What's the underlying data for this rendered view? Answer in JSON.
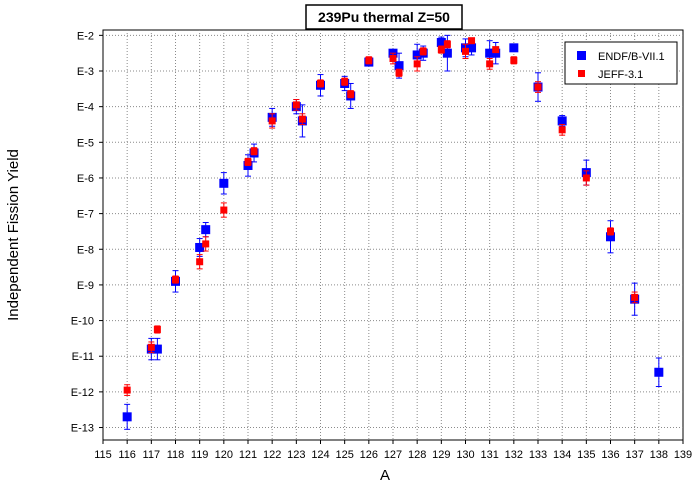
{
  "chart_data": {
    "type": "scatter",
    "title": "239Pu thermal Z=50",
    "xlabel": "A",
    "ylabel": "Independent Fission Yield",
    "xlim": [
      115,
      139
    ],
    "x_ticks": [
      115,
      116,
      117,
      118,
      119,
      120,
      121,
      122,
      123,
      124,
      125,
      126,
      127,
      128,
      129,
      130,
      131,
      132,
      133,
      134,
      135,
      136,
      137,
      138,
      139
    ],
    "y_scale": "log",
    "ylim_exponents": [
      -13.35,
      -1.85
    ],
    "y_ticks": [
      {
        "exp": -2,
        "label": "E-2"
      },
      {
        "exp": -3,
        "label": "E-3"
      },
      {
        "exp": -4,
        "label": "E-4"
      },
      {
        "exp": -5,
        "label": "E-5"
      },
      {
        "exp": -6,
        "label": "E-6"
      },
      {
        "exp": -7,
        "label": "E-7"
      },
      {
        "exp": -8,
        "label": "E-8"
      },
      {
        "exp": -9,
        "label": "E-9"
      },
      {
        "exp": -10,
        "label": "E-10"
      },
      {
        "exp": -11,
        "label": "E-11"
      },
      {
        "exp": -12,
        "label": "E-12"
      },
      {
        "exp": -13,
        "label": "E-13"
      }
    ],
    "grid": true,
    "legend_position": "top-right",
    "series": [
      {
        "name": "ENDF/B-VII.1",
        "color": "#0000ff",
        "marker": "square",
        "points": [
          {
            "x": 116.0,
            "y_exp": -12.7,
            "err": 0.35
          },
          {
            "x": 117.0,
            "y_exp": -10.8,
            "err": 0.3
          },
          {
            "x": 117.25,
            "y_exp": -10.8,
            "err": 0.3
          },
          {
            "x": 118.0,
            "y_exp": -8.9,
            "err": 0.3
          },
          {
            "x": 119.0,
            "y_exp": -7.95,
            "err": 0.25
          },
          {
            "x": 119.25,
            "y_exp": -7.45,
            "err": 0.2
          },
          {
            "x": 120.0,
            "y_exp": -6.15,
            "err": 0.3
          },
          {
            "x": 121.0,
            "y_exp": -5.65,
            "err": 0.3
          },
          {
            "x": 121.25,
            "y_exp": -5.3,
            "err": 0.25
          },
          {
            "x": 122.0,
            "y_exp": -4.3,
            "err": 0.25
          },
          {
            "x": 123.0,
            "y_exp": -4.0,
            "err": 0.2
          },
          {
            "x": 123.25,
            "y_exp": -4.4,
            "err": 0.45
          },
          {
            "x": 124.0,
            "y_exp": -3.4,
            "err": 0.3
          },
          {
            "x": 125.0,
            "y_exp": -3.35,
            "err": 0.2
          },
          {
            "x": 125.25,
            "y_exp": -3.7,
            "err": 0.35
          },
          {
            "x": 126.0,
            "y_exp": -2.75,
            "err": 0.1
          },
          {
            "x": 127.0,
            "y_exp": -2.5,
            "err": 0.1
          },
          {
            "x": 127.25,
            "y_exp": -2.85,
            "err": 0.35
          },
          {
            "x": 128.0,
            "y_exp": -2.55,
            "err": 0.3
          },
          {
            "x": 128.25,
            "y_exp": -2.5,
            "err": 0.2
          },
          {
            "x": 129.0,
            "y_exp": -2.2,
            "err": 0.15
          },
          {
            "x": 129.25,
            "y_exp": -2.5,
            "err": 0.5
          },
          {
            "x": 130.0,
            "y_exp": -2.35,
            "err": 0.25
          },
          {
            "x": 130.25,
            "y_exp": -2.35,
            "err": 0.2
          },
          {
            "x": 131.0,
            "y_exp": -2.5,
            "err": 0.35
          },
          {
            "x": 131.25,
            "y_exp": -2.5,
            "err": 0.3
          },
          {
            "x": 132.0,
            "y_exp": -2.35,
            "err": 0.05
          },
          {
            "x": 133.0,
            "y_exp": -3.45,
            "err": 0.4
          },
          {
            "x": 134.0,
            "y_exp": -4.4,
            "err": 0.15
          },
          {
            "x": 135.0,
            "y_exp": -5.85,
            "err": 0.35
          },
          {
            "x": 136.0,
            "y_exp": -7.65,
            "err": 0.45
          },
          {
            "x": 137.0,
            "y_exp": -9.4,
            "err": 0.45
          },
          {
            "x": 138.0,
            "y_exp": -11.45,
            "err": 0.4
          }
        ]
      },
      {
        "name": "JEFF-3.1",
        "color": "#ff0000",
        "marker": "square",
        "points": [
          {
            "x": 116.0,
            "y_exp": -11.95,
            "err": 0.15
          },
          {
            "x": 117.0,
            "y_exp": -10.75,
            "err": 0.15
          },
          {
            "x": 117.25,
            "y_exp": -10.25,
            "err": 0.1
          },
          {
            "x": 118.0,
            "y_exp": -8.85,
            "err": 0.1
          },
          {
            "x": 119.0,
            "y_exp": -8.35,
            "err": 0.2
          },
          {
            "x": 119.25,
            "y_exp": -7.85,
            "err": 0.2
          },
          {
            "x": 120.0,
            "y_exp": -6.9,
            "err": 0.2
          },
          {
            "x": 121.0,
            "y_exp": -5.55,
            "err": 0.1
          },
          {
            "x": 121.25,
            "y_exp": -5.25,
            "err": 0.1
          },
          {
            "x": 122.0,
            "y_exp": -4.4,
            "err": 0.2
          },
          {
            "x": 123.0,
            "y_exp": -3.95,
            "err": 0.15
          },
          {
            "x": 123.25,
            "y_exp": -4.35,
            "err": 0.15
          },
          {
            "x": 124.0,
            "y_exp": -3.35,
            "err": 0.1
          },
          {
            "x": 125.0,
            "y_exp": -3.3,
            "err": 0.1
          },
          {
            "x": 125.25,
            "y_exp": -3.65,
            "err": 0.1
          },
          {
            "x": 126.0,
            "y_exp": -2.7,
            "err": 0.1
          },
          {
            "x": 127.0,
            "y_exp": -2.65,
            "err": 0.15
          },
          {
            "x": 127.25,
            "y_exp": -3.05,
            "err": 0.1
          },
          {
            "x": 128.0,
            "y_exp": -2.8,
            "err": 0.2
          },
          {
            "x": 128.25,
            "y_exp": -2.45,
            "err": 0.1
          },
          {
            "x": 129.0,
            "y_exp": -2.4,
            "err": 0.1
          },
          {
            "x": 129.25,
            "y_exp": -2.25,
            "err": 0.1
          },
          {
            "x": 130.0,
            "y_exp": -2.45,
            "err": 0.2
          },
          {
            "x": 130.25,
            "y_exp": -2.15,
            "err": 0.05
          },
          {
            "x": 131.0,
            "y_exp": -2.8,
            "err": 0.15
          },
          {
            "x": 131.25,
            "y_exp": -2.4,
            "err": 0.05
          },
          {
            "x": 132.0,
            "y_exp": -2.7,
            "err": 0.1
          },
          {
            "x": 133.0,
            "y_exp": -3.45,
            "err": 0.15
          },
          {
            "x": 134.0,
            "y_exp": -4.65,
            "err": 0.15
          },
          {
            "x": 135.0,
            "y_exp": -6.0,
            "err": 0.2
          },
          {
            "x": 136.0,
            "y_exp": -7.5,
            "err": 0.1
          },
          {
            "x": 137.0,
            "y_exp": -9.35,
            "err": 0.15
          }
        ]
      }
    ]
  }
}
